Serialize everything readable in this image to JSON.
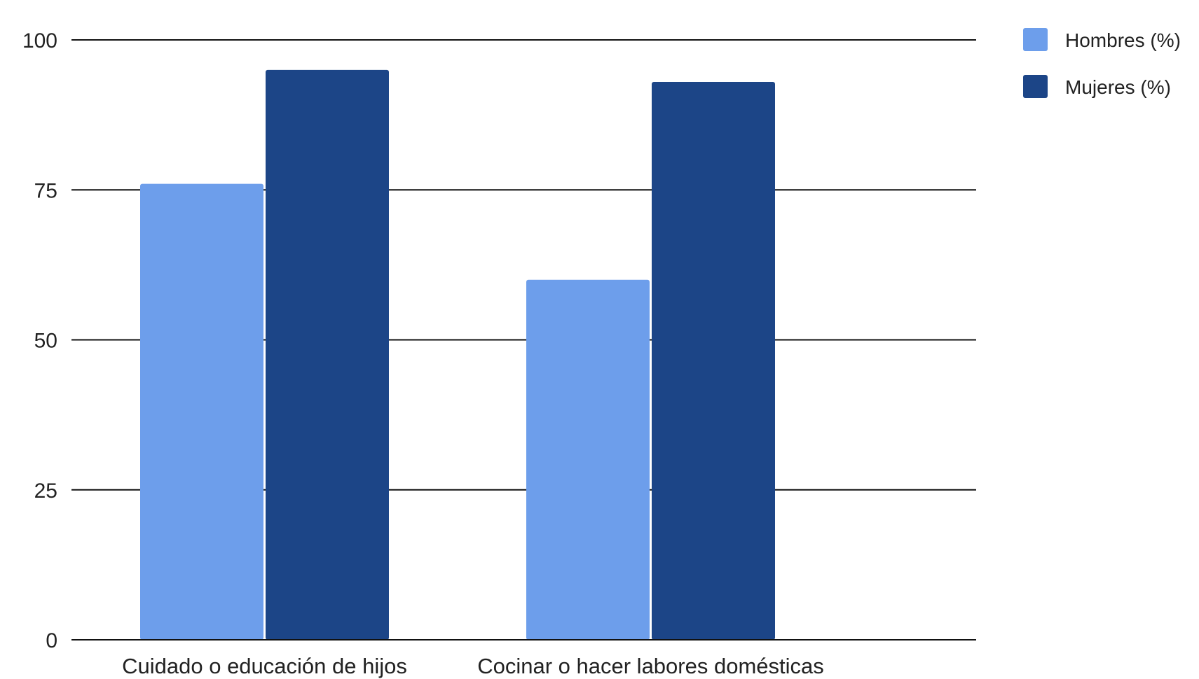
{
  "chart_data": {
    "type": "bar",
    "title": "",
    "xlabel": "",
    "ylabel": "",
    "categories": [
      "Cuidado o educación de hijos",
      "Cocinar o hacer labores domésticas"
    ],
    "series": [
      {
        "name": "Hombres (%)",
        "values": [
          76,
          60
        ],
        "color": "#6d9eeb"
      },
      {
        "name": "Mujeres (%)",
        "values": [
          95,
          93
        ],
        "color": "#1c4587"
      }
    ],
    "ylim": [
      0,
      100
    ],
    "yticks": [
      0,
      25,
      50,
      75,
      100
    ],
    "grid": true,
    "legend_position": "top-right"
  }
}
